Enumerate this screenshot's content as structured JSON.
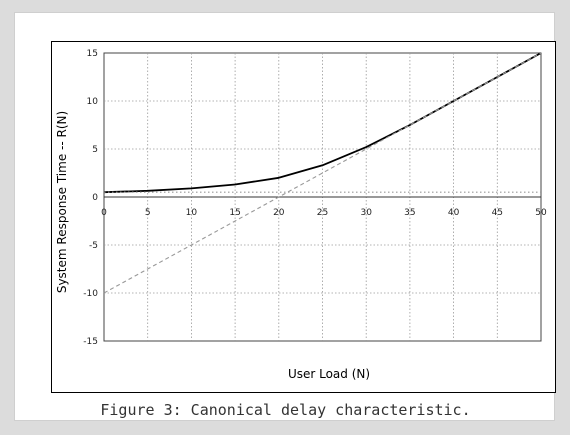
{
  "caption": "Figure 3: Canonical delay characteristic.",
  "chart_data": {
    "type": "line",
    "title": "",
    "xlabel": "User Load (N)",
    "ylabel": "System Response Time -- R(N)",
    "xlim": [
      0,
      50
    ],
    "ylim": [
      -15,
      15
    ],
    "x_ticks": [
      0,
      5,
      10,
      15,
      20,
      25,
      30,
      35,
      40,
      45,
      50
    ],
    "y_ticks": [
      -15,
      -10,
      -5,
      0,
      5,
      10,
      15
    ],
    "grid": true,
    "legend": "none",
    "series": [
      {
        "style": "solid",
        "color": "#000000",
        "x": [
          0,
          5,
          10,
          15,
          20,
          25,
          30,
          35,
          40,
          45,
          50
        ],
        "y": [
          0.5,
          0.65,
          0.9,
          1.3,
          2.0,
          3.3,
          5.2,
          7.5,
          10.0,
          12.5,
          15.0
        ]
      },
      {
        "style": "dashed",
        "color": "#999999",
        "x": [
          0,
          50
        ],
        "y": [
          -10,
          15
        ]
      },
      {
        "style": "dotted",
        "color": "#999999",
        "x": [
          0,
          50
        ],
        "y": [
          0.5,
          0.5
        ]
      }
    ]
  }
}
